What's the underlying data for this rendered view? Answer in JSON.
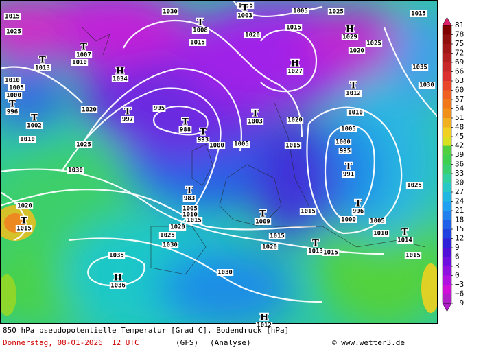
{
  "caption": {
    "title": "850 hPa pseudopotentielle Temperatur [Grad C], Bodendruck [hPa]",
    "date": "Donnerstag, 08-01-2026  12 UTC",
    "model": "(GFS)",
    "run": "(Analyse)",
    "credit": "© www.wetter3.de"
  },
  "colorbar": {
    "ticks": [
      81,
      78,
      75,
      72,
      69,
      66,
      63,
      60,
      57,
      54,
      51,
      48,
      45,
      42,
      39,
      36,
      33,
      30,
      27,
      24,
      21,
      18,
      15,
      12,
      9,
      6,
      3,
      0,
      {
        "value": -3,
        "label": "−3"
      },
      {
        "value": -6,
        "label": "−6"
      },
      {
        "value": -9,
        "label": "−9"
      }
    ],
    "colors": [
      "#e0206c",
      "#800000",
      "#901010",
      "#a01818",
      "#b42020",
      "#c82828",
      "#dc3030",
      "#e84828",
      "#f06020",
      "#f07818",
      "#f09018",
      "#f0b020",
      "#f0d020",
      "#d8e020",
      "#50d040",
      "#40d050",
      "#38d070",
      "#30d0a0",
      "#28c8c8",
      "#20b8e0",
      "#20a0f0",
      "#2080f0",
      "#2060e8",
      "#2040e0",
      "#3020d8",
      "#5010d8",
      "#7010e0",
      "#9010e0",
      "#b010e0",
      "#d010d8",
      "#b020c8"
    ]
  },
  "isobar_labels": [
    1015,
    1030,
    1005,
    1005,
    1025,
    1015,
    1025,
    1020,
    1015,
    1015,
    1010,
    1025,
    1020,
    1035,
    1010,
    1005,
    1000,
    1020,
    995,
    1000,
    1005,
    1015,
    1020,
    1010,
    1005,
    1000,
    995,
    1025,
    1030,
    1020,
    1005,
    1010,
    1015,
    1020,
    1025,
    1030,
    1015,
    1000,
    1005,
    1010,
    1015,
    1020,
    1015,
    1015,
    1035,
    1030,
    1030,
    1025,
    1010
  ],
  "pressure_centers": [
    {
      "symbol": "T",
      "pressure": 1013
    },
    {
      "symbol": "T",
      "pressure": 996
    },
    {
      "symbol": "T",
      "pressure": 1002
    },
    {
      "symbol": "H",
      "pressure": 1034
    },
    {
      "symbol": "T",
      "pressure": 997
    },
    {
      "symbol": "T",
      "pressure": 988
    },
    {
      "symbol": "T",
      "pressure": 993
    },
    {
      "symbol": "T",
      "pressure": 983
    },
    {
      "symbol": "T",
      "pressure": 1009
    },
    {
      "symbol": "T",
      "pressure": 1003
    },
    {
      "symbol": "H",
      "pressure": 1027
    },
    {
      "symbol": "T",
      "pressure": 1012
    },
    {
      "symbol": "H",
      "pressure": 1029
    },
    {
      "symbol": "T",
      "pressure": 991
    },
    {
      "symbol": "T",
      "pressure": 996
    },
    {
      "symbol": "T",
      "pressure": 1014
    },
    {
      "symbol": "T",
      "pressure": 1015
    },
    {
      "symbol": "H",
      "pressure": 1036
    },
    {
      "symbol": "H",
      "pressure": 1012
    },
    {
      "symbol": "T",
      "pressure": 1013
    },
    {
      "symbol": "T",
      "pressure": 1008
    },
    {
      "symbol": "T",
      "pressure": 1007
    },
    {
      "symbol": "T",
      "pressure": 1003
    }
  ]
}
